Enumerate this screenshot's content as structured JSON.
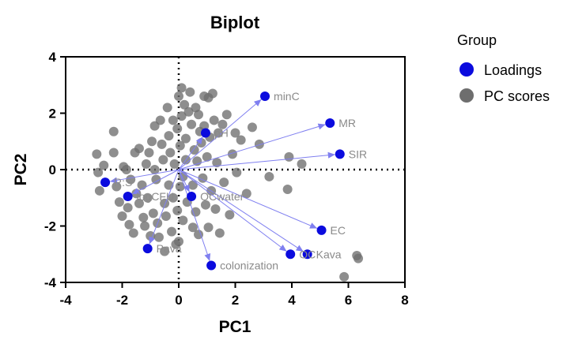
{
  "chart_data": {
    "type": "scatter",
    "title": "Biplot",
    "xlabel": "PC1",
    "ylabel": "PC2",
    "xlim": [
      -4,
      8
    ],
    "ylim": [
      -4,
      4
    ],
    "x_ticks": [
      "-4",
      "-2",
      "0",
      "2",
      "4",
      "6",
      "8"
    ],
    "y_ticks": [
      "-4",
      "-2",
      "0",
      "2",
      "4"
    ],
    "reference_lines": {
      "x": 0,
      "y": 0,
      "style": "dotted"
    },
    "legend": {
      "title": "Group",
      "position": "right",
      "entries": [
        {
          "name": "Loadings",
          "color": "#0b0bde"
        },
        {
          "name": "PC scores",
          "color": "#6e6e6e"
        }
      ]
    },
    "series": [
      {
        "name": "Loadings",
        "color": "#0b0bde",
        "arrow_color": "#7f7ff0",
        "points": [
          {
            "label": "minC",
            "x": 3.05,
            "y": 2.6
          },
          {
            "label": "MR",
            "x": 5.35,
            "y": 1.65
          },
          {
            "label": "SIR",
            "x": 5.7,
            "y": 0.55
          },
          {
            "label": "EC",
            "x": 5.05,
            "y": -2.15
          },
          {
            "label": "Kava",
            "x": 4.55,
            "y": -3.0
          },
          {
            "label": "OC",
            "x": 3.95,
            "y": -3.0
          },
          {
            "label": "colonization",
            "x": 1.15,
            "y": -3.4
          },
          {
            "label": "Pava",
            "x": -1.1,
            "y": -2.8
          },
          {
            "label": "OCwater",
            "x": 0.45,
            "y": -0.95
          },
          {
            "label": "logCFU",
            "x": -1.8,
            "y": -0.95
          },
          {
            "label": "R:S",
            "x": -2.6,
            "y": -0.45
          },
          {
            "label": "pH",
            "x": 0.95,
            "y": 1.3
          }
        ]
      },
      {
        "name": "PC scores",
        "color": "#6e6e6e",
        "points": [
          {
            "x": -2.9,
            "y": 0.55
          },
          {
            "x": -2.85,
            "y": -0.1
          },
          {
            "x": -2.8,
            "y": -0.75
          },
          {
            "x": -2.65,
            "y": 0.15
          },
          {
            "x": -2.3,
            "y": 1.35
          },
          {
            "x": -2.3,
            "y": 0.6
          },
          {
            "x": -2.2,
            "y": -0.6
          },
          {
            "x": -2.1,
            "y": -1.15
          },
          {
            "x": -2.0,
            "y": -1.65
          },
          {
            "x": -1.95,
            "y": 0.1
          },
          {
            "x": -1.85,
            "y": 0.0
          },
          {
            "x": -1.8,
            "y": -1.35
          },
          {
            "x": -1.75,
            "y": -1.95
          },
          {
            "x": -1.7,
            "y": -0.35
          },
          {
            "x": -1.6,
            "y": -2.25
          },
          {
            "x": -1.55,
            "y": 0.6
          },
          {
            "x": -1.5,
            "y": -0.85
          },
          {
            "x": -1.4,
            "y": 0.75
          },
          {
            "x": -1.4,
            "y": -1.2
          },
          {
            "x": -1.3,
            "y": -0.55
          },
          {
            "x": -1.25,
            "y": -1.7
          },
          {
            "x": -1.2,
            "y": -2.0
          },
          {
            "x": -1.15,
            "y": 0.2
          },
          {
            "x": -1.1,
            "y": -1.0
          },
          {
            "x": -1.05,
            "y": 0.6
          },
          {
            "x": -1.0,
            "y": -2.35
          },
          {
            "x": -0.95,
            "y": 1.0
          },
          {
            "x": -0.9,
            "y": -1.55
          },
          {
            "x": -0.85,
            "y": 1.55
          },
          {
            "x": -0.85,
            "y": 0.0
          },
          {
            "x": -0.8,
            "y": -0.35
          },
          {
            "x": -0.75,
            "y": -1.9
          },
          {
            "x": -0.7,
            "y": -2.4
          },
          {
            "x": -0.65,
            "y": 1.75
          },
          {
            "x": -0.6,
            "y": 0.9
          },
          {
            "x": -0.55,
            "y": 0.35
          },
          {
            "x": -0.5,
            "y": -1.2
          },
          {
            "x": -0.5,
            "y": -2.9
          },
          {
            "x": -0.45,
            "y": -1.65
          },
          {
            "x": -0.4,
            "y": 2.2
          },
          {
            "x": -0.35,
            "y": 1.2
          },
          {
            "x": -0.35,
            "y": -0.55
          },
          {
            "x": -0.3,
            "y": 0.6
          },
          {
            "x": -0.25,
            "y": -2.2
          },
          {
            "x": -0.2,
            "y": 1.75
          },
          {
            "x": -0.2,
            "y": -1.0
          },
          {
            "x": -0.15,
            "y": 0.2
          },
          {
            "x": -0.1,
            "y": -2.65
          },
          {
            "x": -0.05,
            "y": 1.45
          },
          {
            "x": -0.05,
            "y": -1.45
          },
          {
            "x": 0.0,
            "y": 2.6
          },
          {
            "x": 0.0,
            "y": -2.55
          },
          {
            "x": 0.05,
            "y": 0.85
          },
          {
            "x": 0.05,
            "y": -0.6
          },
          {
            "x": 0.1,
            "y": 2.9
          },
          {
            "x": 0.1,
            "y": 1.9
          },
          {
            "x": 0.15,
            "y": -0.25
          },
          {
            "x": 0.15,
            "y": -1.8
          },
          {
            "x": 0.2,
            "y": 2.3
          },
          {
            "x": 0.25,
            "y": 1.1
          },
          {
            "x": 0.25,
            "y": 0.35
          },
          {
            "x": 0.3,
            "y": -1.15
          },
          {
            "x": 0.35,
            "y": 2.05
          },
          {
            "x": 0.4,
            "y": 2.75
          },
          {
            "x": 0.45,
            "y": 1.6
          },
          {
            "x": 0.5,
            "y": -0.55
          },
          {
            "x": 0.5,
            "y": -2.05
          },
          {
            "x": 0.55,
            "y": 0.7
          },
          {
            "x": 0.6,
            "y": 2.2
          },
          {
            "x": 0.6,
            "y": -1.5
          },
          {
            "x": 0.65,
            "y": 0.3
          },
          {
            "x": 0.7,
            "y": 1.95
          },
          {
            "x": 0.7,
            "y": -2.3
          },
          {
            "x": 0.75,
            "y": 1.35
          },
          {
            "x": 0.8,
            "y": 0.95
          },
          {
            "x": 0.85,
            "y": -0.3
          },
          {
            "x": 0.9,
            "y": 2.6
          },
          {
            "x": 0.9,
            "y": 1.55
          },
          {
            "x": 0.95,
            "y": -1.25
          },
          {
            "x": 1.0,
            "y": 0.45
          },
          {
            "x": 1.05,
            "y": 2.55
          },
          {
            "x": 1.05,
            "y": -2.05
          },
          {
            "x": 1.1,
            "y": 1.15
          },
          {
            "x": 1.15,
            "y": -0.75
          },
          {
            "x": 1.2,
            "y": 2.7
          },
          {
            "x": 1.25,
            "y": 1.75
          },
          {
            "x": 1.3,
            "y": -1.4
          },
          {
            "x": 1.35,
            "y": 0.25
          },
          {
            "x": 1.4,
            "y": 1.3
          },
          {
            "x": 1.45,
            "y": -2.25
          },
          {
            "x": 1.55,
            "y": 1.6
          },
          {
            "x": 1.6,
            "y": -0.45
          },
          {
            "x": 1.7,
            "y": 1.95
          },
          {
            "x": 1.8,
            "y": -1.6
          },
          {
            "x": 1.9,
            "y": 0.55
          },
          {
            "x": 2.0,
            "y": 1.3
          },
          {
            "x": 2.05,
            "y": -0.1
          },
          {
            "x": 2.2,
            "y": 1.05
          },
          {
            "x": 2.4,
            "y": -0.85
          },
          {
            "x": 2.6,
            "y": 1.5
          },
          {
            "x": 2.85,
            "y": 0.9
          },
          {
            "x": 3.2,
            "y": -0.25
          },
          {
            "x": 3.9,
            "y": 0.45
          },
          {
            "x": 3.85,
            "y": -0.7
          },
          {
            "x": 4.35,
            "y": 0.2
          },
          {
            "x": 5.85,
            "y": -3.8
          },
          {
            "x": 6.3,
            "y": -3.05
          },
          {
            "x": 6.35,
            "y": -3.15
          }
        ]
      }
    ]
  }
}
